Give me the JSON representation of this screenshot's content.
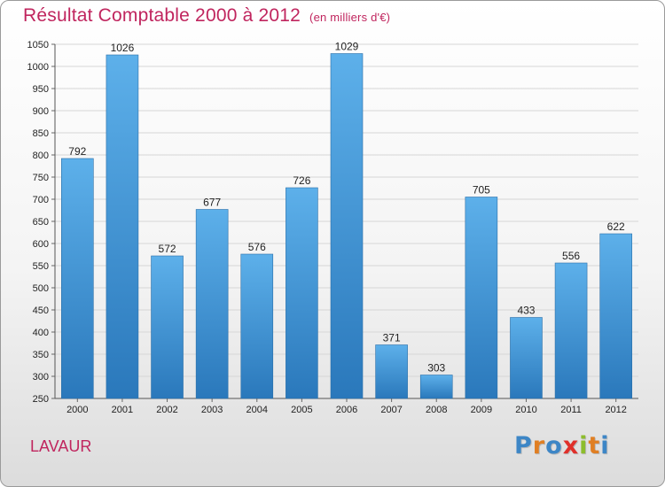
{
  "chart_data": {
    "type": "bar",
    "title": "Résultat Comptable 2000 à 2012",
    "subtitle": "(en milliers d'€)",
    "categories": [
      "2000",
      "2001",
      "2002",
      "2003",
      "2004",
      "2005",
      "2006",
      "2007",
      "2008",
      "2009",
      "2010",
      "2011",
      "2012"
    ],
    "values": [
      792,
      1026,
      572,
      677,
      576,
      726,
      1029,
      371,
      303,
      705,
      433,
      556,
      622
    ],
    "ylim": [
      250,
      1050
    ],
    "yticks": [
      250,
      300,
      350,
      400,
      450,
      500,
      550,
      600,
      650,
      700,
      750,
      800,
      850,
      900,
      950,
      1000,
      1050
    ],
    "xlabel": "",
    "ylabel": "",
    "grid": true,
    "bar_color": "#3f95d6"
  },
  "footer": {
    "city": "LAVAUR",
    "logo_letters": [
      {
        "ch": "P",
        "color": "#3d86c6"
      },
      {
        "ch": "r",
        "color": "#e07f23"
      },
      {
        "ch": "o",
        "color": "#3d86c6"
      },
      {
        "ch": "x",
        "color": "#e0302a"
      },
      {
        "ch": "i",
        "color": "#8dbd2c"
      },
      {
        "ch": "t",
        "color": "#e07f23"
      },
      {
        "ch": "i",
        "color": "#3d86c6"
      }
    ]
  }
}
